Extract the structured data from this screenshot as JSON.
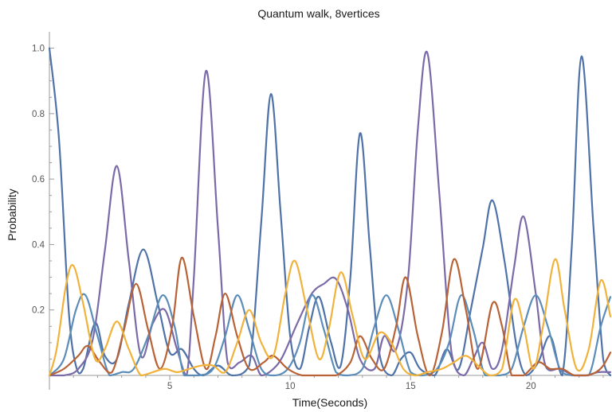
{
  "chart_data": {
    "type": "line",
    "title": "Quantum walk, 8vertices",
    "xlabel": "Time(Seconds)",
    "ylabel": "Probability",
    "xlim": [
      0,
      23.3
    ],
    "ylim": [
      0,
      1.05
    ],
    "xticks": [
      5,
      10,
      15,
      20
    ],
    "yticks": [
      0.2,
      0.4,
      0.6,
      0.8,
      1.0
    ],
    "xtick_labels": [
      "5",
      "10",
      "15",
      "20"
    ],
    "ytick_labels": [
      "0.2",
      "0.4",
      "0.6",
      "0.8",
      "1.0"
    ],
    "grid": false,
    "legend": "none",
    "series": [
      {
        "color": "#4f72a8",
        "points": [
          [
            0,
            1.0
          ],
          [
            0.4,
            0.72
          ],
          [
            0.8,
            0.2
          ],
          [
            1.1,
            0.03
          ],
          [
            1.4,
            0.02
          ],
          [
            1.9,
            0.16
          ],
          [
            2.3,
            0.06
          ],
          [
            2.8,
            0.05
          ],
          [
            3.3,
            0.22
          ],
          [
            3.9,
            0.385
          ],
          [
            4.5,
            0.22
          ],
          [
            5.0,
            0.07
          ],
          [
            5.5,
            0.08
          ],
          [
            6.0,
            0.02
          ],
          [
            6.4,
            0.0
          ],
          [
            7.0,
            0.03
          ],
          [
            7.6,
            0.0
          ],
          [
            8.3,
            0.03
          ],
          [
            8.8,
            0.47
          ],
          [
            9.2,
            0.86
          ],
          [
            9.6,
            0.5
          ],
          [
            10.0,
            0.12
          ],
          [
            10.4,
            0.02
          ],
          [
            10.8,
            0.15
          ],
          [
            11.2,
            0.24
          ],
          [
            11.7,
            0.1
          ],
          [
            12.1,
            0.03
          ],
          [
            12.5,
            0.3
          ],
          [
            12.9,
            0.74
          ],
          [
            13.3,
            0.4
          ],
          [
            13.7,
            0.07
          ],
          [
            14.2,
            0.0
          ],
          [
            14.6,
            0.05
          ],
          [
            15.0,
            0.07
          ],
          [
            15.4,
            0.02
          ],
          [
            16.0,
            0.0
          ],
          [
            16.5,
            0.08
          ],
          [
            17.0,
            0.02
          ],
          [
            17.5,
            0.2
          ],
          [
            18.0,
            0.39
          ],
          [
            18.4,
            0.535
          ],
          [
            18.9,
            0.35
          ],
          [
            19.4,
            0.09
          ],
          [
            19.8,
            0.0
          ],
          [
            20.3,
            0.04
          ],
          [
            20.8,
            0.12
          ],
          [
            21.3,
            0.0
          ],
          [
            21.7,
            0.4
          ],
          [
            22.1,
            0.975
          ],
          [
            22.6,
            0.45
          ],
          [
            23.0,
            0.05
          ],
          [
            23.3,
            0.0
          ]
        ]
      },
      {
        "color": "#7b6aa8",
        "points": [
          [
            0,
            0.0
          ],
          [
            0.6,
            0.0
          ],
          [
            1.2,
            0.02
          ],
          [
            1.8,
            0.11
          ],
          [
            2.3,
            0.38
          ],
          [
            2.8,
            0.64
          ],
          [
            3.3,
            0.35
          ],
          [
            3.8,
            0.06
          ],
          [
            4.3,
            0.16
          ],
          [
            4.8,
            0.2
          ],
          [
            5.3,
            0.08
          ],
          [
            5.7,
            0.0
          ],
          [
            6.0,
            0.3
          ],
          [
            6.5,
            0.93
          ],
          [
            7.0,
            0.45
          ],
          [
            7.4,
            0.04
          ],
          [
            7.9,
            0.04
          ],
          [
            8.4,
            0.06
          ],
          [
            8.8,
            0.0
          ],
          [
            9.3,
            0.02
          ],
          [
            9.7,
            0.06
          ],
          [
            10.3,
            0.16
          ],
          [
            10.9,
            0.25
          ],
          [
            11.4,
            0.28
          ],
          [
            11.9,
            0.295
          ],
          [
            12.4,
            0.2
          ],
          [
            12.9,
            0.05
          ],
          [
            13.5,
            0.02
          ],
          [
            13.9,
            0.12
          ],
          [
            14.4,
            0.08
          ],
          [
            14.9,
            0.3
          ],
          [
            15.3,
            0.75
          ],
          [
            15.7,
            0.985
          ],
          [
            16.2,
            0.55
          ],
          [
            16.7,
            0.07
          ],
          [
            17.2,
            0.0
          ],
          [
            17.6,
            0.05
          ],
          [
            18.0,
            0.1
          ],
          [
            18.4,
            0.02
          ],
          [
            18.8,
            0.08
          ],
          [
            19.3,
            0.33
          ],
          [
            19.7,
            0.485
          ],
          [
            20.2,
            0.25
          ],
          [
            20.6,
            0.03
          ],
          [
            21.2,
            0.02
          ],
          [
            21.8,
            0.0
          ],
          [
            22.3,
            0.0
          ],
          [
            22.8,
            0.01
          ],
          [
            23.3,
            0.01
          ]
        ]
      },
      {
        "color": "#5b8db8",
        "points": [
          [
            0,
            0.0
          ],
          [
            0.6,
            0.05
          ],
          [
            1.1,
            0.2
          ],
          [
            1.5,
            0.245
          ],
          [
            2.0,
            0.12
          ],
          [
            2.5,
            0.0
          ],
          [
            3.0,
            0.01
          ],
          [
            3.5,
            0.02
          ],
          [
            4.1,
            0.12
          ],
          [
            4.7,
            0.245
          ],
          [
            5.2,
            0.15
          ],
          [
            5.6,
            0.0
          ],
          [
            6.2,
            0.0
          ],
          [
            6.8,
            0.02
          ],
          [
            7.3,
            0.12
          ],
          [
            7.8,
            0.245
          ],
          [
            8.3,
            0.14
          ],
          [
            8.8,
            0.02
          ],
          [
            9.3,
            0.0
          ],
          [
            9.9,
            0.02
          ],
          [
            10.4,
            0.1
          ],
          [
            10.9,
            0.245
          ],
          [
            11.4,
            0.14
          ],
          [
            11.9,
            0.01
          ],
          [
            12.4,
            0.0
          ],
          [
            13.0,
            0.02
          ],
          [
            13.5,
            0.15
          ],
          [
            14.0,
            0.245
          ],
          [
            14.5,
            0.14
          ],
          [
            15.0,
            0.01
          ],
          [
            15.5,
            0.0
          ],
          [
            16.1,
            0.02
          ],
          [
            16.6,
            0.1
          ],
          [
            17.1,
            0.245
          ],
          [
            17.6,
            0.14
          ],
          [
            18.1,
            0.0
          ],
          [
            18.7,
            0.0
          ],
          [
            19.2,
            0.02
          ],
          [
            19.7,
            0.15
          ],
          [
            20.2,
            0.245
          ],
          [
            20.7,
            0.15
          ],
          [
            21.2,
            0.02
          ],
          [
            21.7,
            0.0
          ],
          [
            22.4,
            0.0
          ],
          [
            22.9,
            0.15
          ],
          [
            23.3,
            0.24
          ]
        ]
      },
      {
        "color": "#b86236",
        "points": [
          [
            0,
            0.0
          ],
          [
            0.6,
            0.02
          ],
          [
            1.2,
            0.06
          ],
          [
            1.6,
            0.09
          ],
          [
            2.1,
            0.04
          ],
          [
            2.6,
            0.01
          ],
          [
            3.1,
            0.14
          ],
          [
            3.6,
            0.28
          ],
          [
            4.1,
            0.14
          ],
          [
            4.6,
            0.02
          ],
          [
            5.1,
            0.15
          ],
          [
            5.5,
            0.36
          ],
          [
            6.0,
            0.18
          ],
          [
            6.5,
            0.02
          ],
          [
            6.9,
            0.12
          ],
          [
            7.3,
            0.25
          ],
          [
            7.8,
            0.12
          ],
          [
            8.3,
            0.02
          ],
          [
            8.9,
            0.04
          ],
          [
            9.3,
            0.06
          ],
          [
            9.9,
            0.02
          ],
          [
            10.5,
            0.0
          ],
          [
            11.2,
            0.0
          ],
          [
            11.9,
            0.0
          ],
          [
            12.5,
            0.04
          ],
          [
            12.9,
            0.12
          ],
          [
            13.4,
            0.05
          ],
          [
            13.9,
            0.02
          ],
          [
            14.4,
            0.15
          ],
          [
            14.8,
            0.3
          ],
          [
            15.3,
            0.12
          ],
          [
            15.8,
            0.0
          ],
          [
            16.3,
            0.13
          ],
          [
            16.8,
            0.355
          ],
          [
            17.3,
            0.2
          ],
          [
            17.8,
            0.02
          ],
          [
            18.4,
            0.22
          ],
          [
            18.8,
            0.15
          ],
          [
            19.2,
            0.0
          ],
          [
            19.7,
            0.0
          ],
          [
            20.3,
            0.04
          ],
          [
            20.8,
            0.02
          ],
          [
            21.3,
            0.02
          ],
          [
            21.8,
            0.0
          ],
          [
            22.3,
            0.0
          ],
          [
            22.7,
            0.01
          ],
          [
            23.0,
            0.03
          ],
          [
            23.3,
            0.07
          ]
        ]
      },
      {
        "color": "#f1b23b",
        "points": [
          [
            0,
            0.0
          ],
          [
            0.3,
            0.08
          ],
          [
            0.7,
            0.28
          ],
          [
            1.0,
            0.335
          ],
          [
            1.4,
            0.22
          ],
          [
            1.9,
            0.05
          ],
          [
            2.3,
            0.08
          ],
          [
            2.8,
            0.165
          ],
          [
            3.3,
            0.08
          ],
          [
            3.8,
            0.0
          ],
          [
            4.3,
            0.01
          ],
          [
            4.8,
            0.02
          ],
          [
            5.3,
            0.01
          ],
          [
            5.8,
            0.02
          ],
          [
            6.3,
            0.03
          ],
          [
            6.8,
            0.03
          ],
          [
            7.3,
            0.01
          ],
          [
            7.8,
            0.1
          ],
          [
            8.3,
            0.2
          ],
          [
            8.8,
            0.1
          ],
          [
            9.3,
            0.06
          ],
          [
            9.8,
            0.25
          ],
          [
            10.2,
            0.35
          ],
          [
            10.7,
            0.2
          ],
          [
            11.2,
            0.05
          ],
          [
            11.6,
            0.14
          ],
          [
            12.1,
            0.315
          ],
          [
            12.6,
            0.18
          ],
          [
            13.1,
            0.05
          ],
          [
            13.7,
            0.13
          ],
          [
            14.2,
            0.1
          ],
          [
            14.7,
            0.02
          ],
          [
            15.2,
            0.0
          ],
          [
            15.7,
            0.01
          ],
          [
            16.3,
            0.02
          ],
          [
            16.8,
            0.04
          ],
          [
            17.3,
            0.06
          ],
          [
            17.8,
            0.03
          ],
          [
            18.3,
            0.0
          ],
          [
            18.8,
            0.02
          ],
          [
            19.3,
            0.23
          ],
          [
            19.7,
            0.15
          ],
          [
            20.1,
            0.02
          ],
          [
            20.5,
            0.15
          ],
          [
            21.0,
            0.355
          ],
          [
            21.4,
            0.2
          ],
          [
            21.9,
            0.02
          ],
          [
            22.4,
            0.08
          ],
          [
            22.9,
            0.29
          ],
          [
            23.3,
            0.18
          ]
        ]
      }
    ]
  }
}
